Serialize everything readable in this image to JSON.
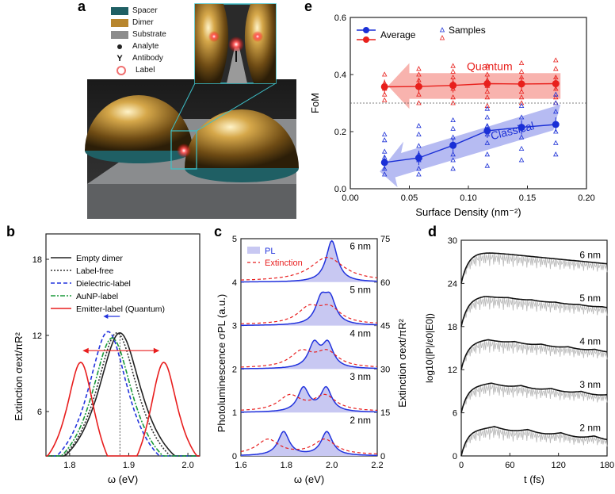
{
  "panel_labels": {
    "a": "a",
    "b": "b",
    "c": "c",
    "d": "d",
    "e": "e"
  },
  "panel_a": {
    "legend": [
      {
        "label": "Spacer",
        "color": "#1f5f64"
      },
      {
        "label": "Dimer",
        "color": "#b8862e"
      },
      {
        "label": "Substrate",
        "color": "#8c8c8c"
      },
      {
        "label": "Analyte",
        "color": "#222222"
      },
      {
        "label": "Antibody",
        "color": "#222222"
      },
      {
        "label": "Label",
        "color": "#f07070"
      }
    ]
  },
  "chart_data": [
    {
      "id": "e",
      "type": "scatter",
      "xlabel": "Surface Density (nm⁻²)",
      "ylabel": "FoM",
      "xlim": [
        0,
        0.2
      ],
      "ylim": [
        0,
        0.6
      ],
      "xticks": [
        "0.00",
        "0.05",
        "0.10",
        "0.15",
        "0.20"
      ],
      "yticks": [
        "0.0",
        "0.2",
        "0.4",
        "0.6"
      ],
      "reference_line": 0.3,
      "legend": {
        "average": "Average",
        "samples": "Samples"
      },
      "annotations": {
        "quantum": "Quantum",
        "classical": "Classical"
      },
      "x": [
        0.029,
        0.058,
        0.087,
        0.116,
        0.145,
        0.174
      ],
      "series": [
        {
          "name": "Quantum",
          "color": "#e8201c",
          "average": [
            0.357,
            0.358,
            0.362,
            0.368,
            0.367,
            0.368
          ],
          "samples": [
            [
              0.31,
              0.33,
              0.35,
              0.37,
              0.4
            ],
            [
              0.3,
              0.33,
              0.36,
              0.38,
              0.4,
              0.42
            ],
            [
              0.3,
              0.32,
              0.35,
              0.37,
              0.39,
              0.41,
              0.43
            ],
            [
              0.29,
              0.32,
              0.34,
              0.36,
              0.38,
              0.4,
              0.43
            ],
            [
              0.3,
              0.32,
              0.34,
              0.37,
              0.39,
              0.41,
              0.44
            ],
            [
              0.3,
              0.32,
              0.35,
              0.37,
              0.39,
              0.42,
              0.45
            ]
          ]
        },
        {
          "name": "Classical",
          "color": "#1a2fd6",
          "average": [
            0.092,
            0.108,
            0.152,
            0.203,
            0.215,
            0.225
          ],
          "samples": [
            [
              0.05,
              0.07,
              0.09,
              0.11,
              0.13,
              0.17,
              0.19
            ],
            [
              0.05,
              0.07,
              0.1,
              0.12,
              0.15,
              0.19,
              0.22
            ],
            [
              0.07,
              0.1,
              0.12,
              0.15,
              0.18,
              0.21,
              0.24
            ],
            [
              0.08,
              0.12,
              0.16,
              0.19,
              0.22,
              0.25,
              0.28
            ],
            [
              0.1,
              0.14,
              0.18,
              0.22,
              0.25,
              0.29
            ],
            [
              0.12,
              0.16,
              0.2,
              0.23,
              0.27,
              0.3,
              0.33
            ]
          ]
        }
      ]
    },
    {
      "id": "b",
      "type": "line",
      "xlabel": "ω (eV)",
      "ylabel": "Extinction σext/πR²",
      "xlim": [
        1.76,
        2.02
      ],
      "ylim": [
        2.5,
        20
      ],
      "xticks": [
        "1.8",
        "1.9",
        "2.0"
      ],
      "yticks": [
        "6",
        "12",
        "18"
      ],
      "series": [
        {
          "name": "Empty dimer",
          "color": "#222222",
          "dash": "none",
          "peaks": [
            1.885
          ],
          "amp": 12.2,
          "width": 0.07
        },
        {
          "name": "Label-free",
          "color": "#333333",
          "dash": "2,2",
          "peaks": [
            1.88
          ],
          "amp": 12.2,
          "width": 0.068
        },
        {
          "name": "Dielectric-label",
          "color": "#2233dd",
          "dash": "5,3",
          "peaks": [
            1.865
          ],
          "amp": 12.3,
          "width": 0.065
        },
        {
          "name": "AuNP-label",
          "color": "#1a9a3a",
          "dash": "6,2,2,2",
          "peaks": [
            1.872
          ],
          "amp": 11.8,
          "width": 0.066
        },
        {
          "name": "Emitter-label (Quantum)",
          "color": "#e81e1e",
          "dash": "none",
          "peaks": [
            1.82,
            1.958
          ],
          "amp": 10.7,
          "width": 0.045
        }
      ]
    },
    {
      "id": "c",
      "type": "line",
      "xlabel": "ω (eV)",
      "ylabel": "Photoluminescence σPL (a.u.)",
      "ylabel_right": "Extinction σext/πR²",
      "xlim": [
        1.6,
        2.2
      ],
      "ylim": [
        0,
        5
      ],
      "ylim_right": [
        0,
        75
      ],
      "xticks": [
        "1.6",
        "1.8",
        "2.0",
        "2.2"
      ],
      "yticks": [
        "0",
        "1",
        "2",
        "3",
        "4",
        "5"
      ],
      "yticks_right": [
        "0",
        "15",
        "30",
        "45",
        "60",
        "75"
      ],
      "legend": {
        "pl": "PL",
        "ext": "Extinction"
      },
      "gaps": [
        "6 nm",
        "5 nm",
        "4 nm",
        "3 nm",
        "2 nm"
      ],
      "split": [
        0.0,
        0.02,
        0.03,
        0.05,
        0.095
      ]
    },
    {
      "id": "d",
      "type": "line",
      "xlabel": "t (fs)",
      "ylabel": "log10(|P|/ε0|E0|)",
      "xlim": [
        0,
        180
      ],
      "ylim": [
        0,
        30
      ],
      "xticks": [
        "0",
        "60",
        "120",
        "180"
      ],
      "yticks": [
        "0",
        "6",
        "12",
        "18",
        "24",
        "30"
      ],
      "gaps": [
        "6 nm",
        "5 nm",
        "4 nm",
        "3 nm",
        "2 nm"
      ],
      "offsets": [
        24,
        18,
        12,
        6,
        0
      ]
    }
  ]
}
